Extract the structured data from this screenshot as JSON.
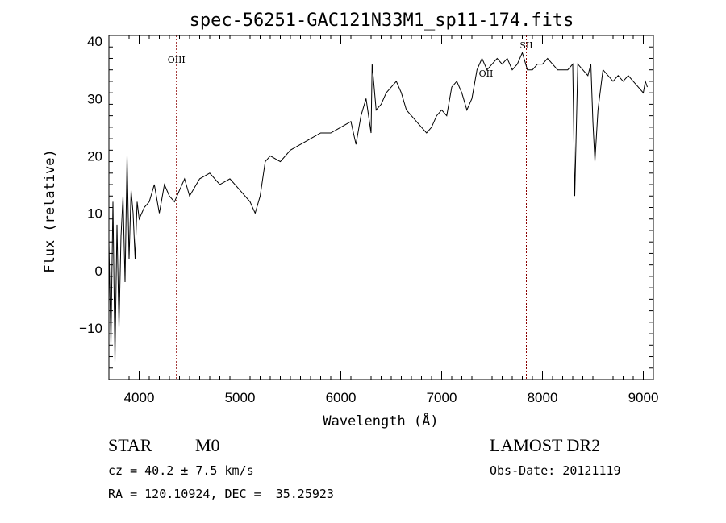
{
  "chart_data": {
    "type": "line",
    "title": "spec-56251-GAC121N33M1_sp11-174.fits",
    "xlabel": "Wavelength (Å)",
    "ylabel": "Flux (relative)",
    "xlim": [
      3700,
      9100
    ],
    "ylim": [
      -19,
      41
    ],
    "x_ticks": [
      4000,
      5000,
      6000,
      7000,
      8000,
      9000
    ],
    "y_ticks": [
      -10,
      0,
      10,
      20,
      30,
      40
    ],
    "series": [
      {
        "x": [
          3700,
          3720,
          3740,
          3760,
          3780,
          3800,
          3820,
          3840,
          3860,
          3880,
          3900,
          3920,
          3940,
          3960,
          3980,
          4000,
          4050,
          4100,
          4150,
          4200,
          4250,
          4300,
          4350,
          4400,
          4450,
          4500,
          4600,
          4700,
          4800,
          4900,
          5000,
          5100,
          5150,
          5200,
          5250,
          5300,
          5400,
          5500,
          5600,
          5700,
          5800,
          5900,
          6000,
          6100,
          6150,
          6200,
          6250,
          6300,
          6310,
          6350,
          6400,
          6450,
          6500,
          6550,
          6600,
          6650,
          6700,
          6750,
          6800,
          6850,
          6900,
          6950,
          7000,
          7050,
          7100,
          7150,
          7200,
          7250,
          7300,
          7350,
          7400,
          7450,
          7500,
          7550,
          7600,
          7650,
          7700,
          7750,
          7800,
          7850,
          7900,
          7950,
          8000,
          8050,
          8100,
          8150,
          8200,
          8250,
          8300,
          8320,
          8350,
          8400,
          8450,
          8480,
          8500,
          8520,
          8550,
          8600,
          8650,
          8700,
          8750,
          8800,
          8850,
          8900,
          8950,
          9000,
          9020,
          9040
        ],
        "y": [
          5,
          -13,
          12,
          -16,
          8,
          -10,
          6,
          13,
          -2,
          20,
          2,
          14,
          10,
          2,
          12,
          9,
          11,
          12,
          15,
          10,
          15,
          13,
          12,
          14,
          16,
          13,
          16,
          17,
          15,
          16,
          14,
          12,
          10,
          13,
          19,
          20,
          19,
          21,
          22,
          23,
          24,
          24,
          25,
          26,
          22,
          27,
          30,
          24,
          36,
          28,
          29,
          31,
          32,
          33,
          31,
          28,
          27,
          26,
          25,
          24,
          25,
          27,
          28,
          27,
          32,
          33,
          31,
          28,
          30,
          35,
          37,
          35,
          36,
          37,
          36,
          37,
          35,
          36,
          38,
          35,
          35,
          36,
          36,
          37,
          36,
          35,
          35,
          35,
          36,
          13,
          36,
          35,
          34,
          36,
          26,
          19,
          28,
          35,
          34,
          33,
          34,
          33,
          34,
          33,
          32,
          31,
          33,
          32
        ]
      }
    ],
    "line_markers": [
      {
        "label": "OIII",
        "wavelength": 4370
      },
      {
        "label": "OII",
        "wavelength": 7440
      },
      {
        "label": "SII",
        "wavelength": 7840
      }
    ],
    "line_color": "#000000",
    "marker_color": "#8b0000",
    "grid": false
  },
  "info": {
    "object_class": "STAR",
    "subclass": "M0",
    "survey": "LAMOST DR2",
    "redshift_line": "cz = 40.2 ± 7.5 km/s",
    "obs_date_line": "Obs-Date: 20121119",
    "coords_line": "RA = 120.10924, DEC =  35.25923"
  }
}
